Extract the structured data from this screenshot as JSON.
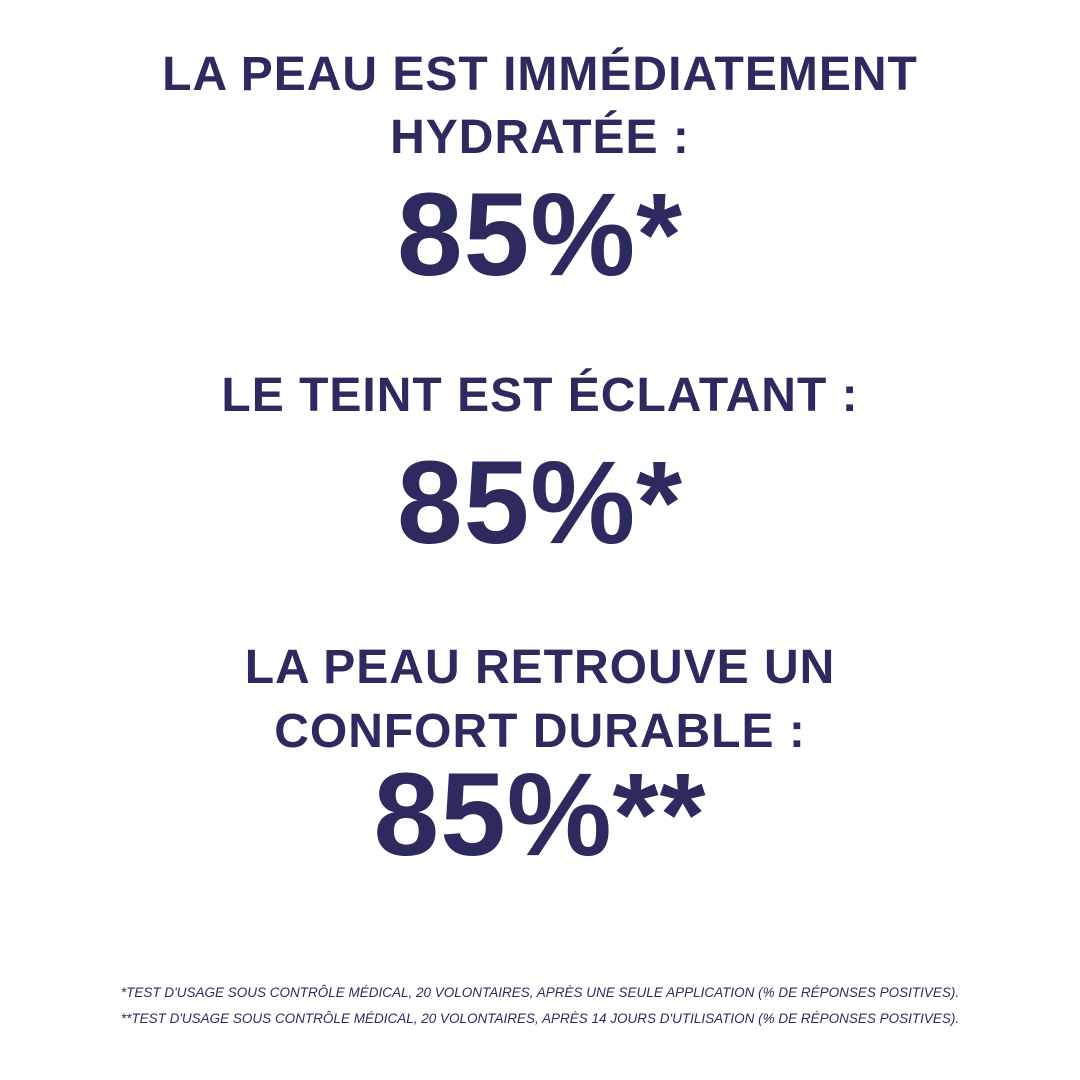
{
  "stats": [
    {
      "label_line1": "LA PEAU EST IMMÉDIATEMENT",
      "label_line2": "HYDRATÉE :",
      "value": "85%*"
    },
    {
      "label_line1": "LE TEINT EST ÉCLATANT :",
      "value": "85%*"
    },
    {
      "label_line1": "LA PEAU RETROUVE UN",
      "label_line2": "CONFORT DURABLE :",
      "value": "85%**"
    }
  ],
  "footnotes": [
    "*TEST D'USAGE SOUS CONTRÔLE MÉDICAL, 20 VOLONTAIRES, APRÈS UNE SEULE APPLICATION (% DE RÉPONSES POSITIVES).",
    "**TEST D'USAGE SOUS CONTRÔLE MÉDICAL, 20 VOLONTAIRES, APRÈS 14 JOURS D'UTILISATION (% DE RÉPONSES POSITIVES)."
  ],
  "colors": {
    "text": "#2d2a5f",
    "background": "#ffffff"
  }
}
